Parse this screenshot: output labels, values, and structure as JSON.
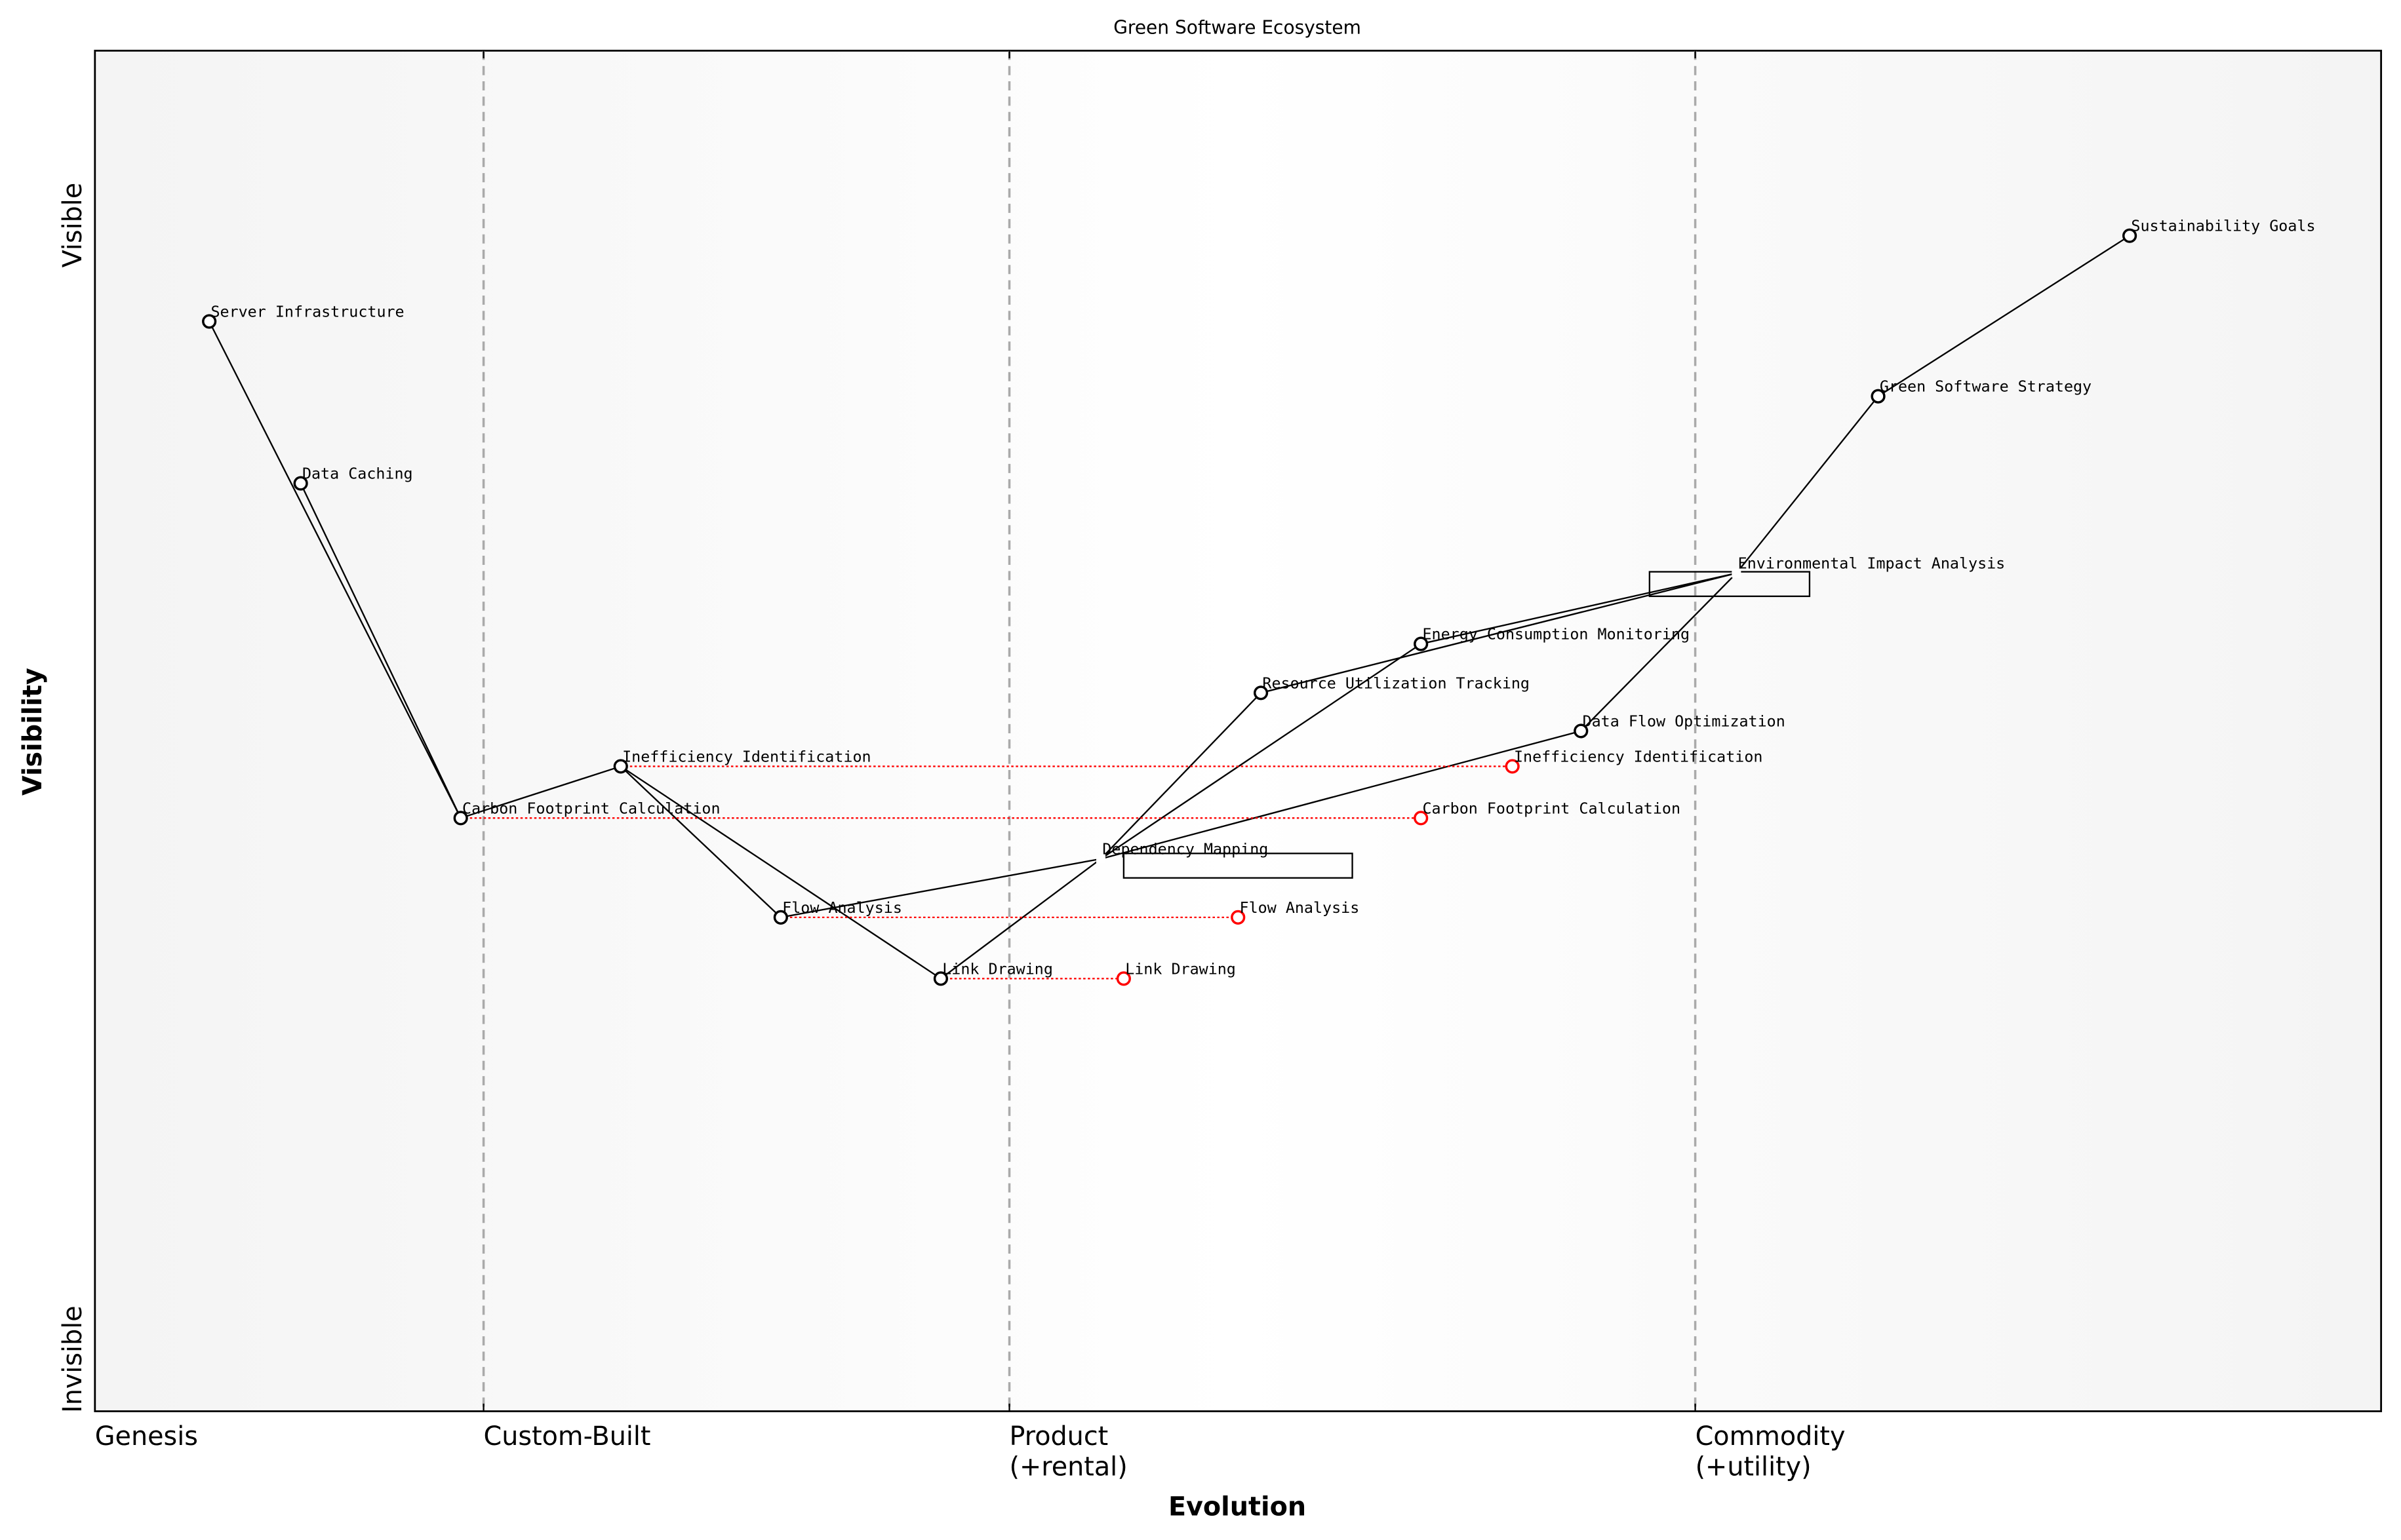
{
  "chart_data": {
    "type": "wardley-map",
    "title": "Green Software Ecosystem",
    "xlabel": "Evolution",
    "ylabel": "Visibility",
    "xlim": [
      0,
      1
    ],
    "ylim": [
      0,
      1
    ],
    "x_stage_labels": [
      "Genesis",
      "Custom-Built",
      "Product\n(+rental)",
      "Commodity\n(+utility)"
    ],
    "stage_boundaries": [
      0.17,
      0.4,
      0.7
    ],
    "y_labels": {
      "top": "Visible",
      "bottom": "Invisible"
    },
    "components": [
      {
        "name": "Sustainability Goals",
        "evolution": 0.89,
        "visibility": 0.864,
        "marker": true
      },
      {
        "name": "Green Software Strategy",
        "evolution": 0.78,
        "visibility": 0.746,
        "marker": true
      },
      {
        "name": "Environmental Impact Analysis",
        "evolution": 0.718,
        "visibility": 0.616,
        "marker": false
      },
      {
        "name": "Energy Consumption Monitoring",
        "evolution": 0.58,
        "visibility": 0.564,
        "marker": true
      },
      {
        "name": "Resource Utilization Tracking",
        "evolution": 0.51,
        "visibility": 0.528,
        "marker": true
      },
      {
        "name": "Data Flow Optimization",
        "evolution": 0.65,
        "visibility": 0.5,
        "marker": true
      },
      {
        "name": "Inefficiency Identification",
        "evolution": 0.23,
        "visibility": 0.474,
        "marker": true
      },
      {
        "name": "Carbon Footprint Calculation",
        "evolution": 0.16,
        "visibility": 0.436,
        "marker": true
      },
      {
        "name": "Dependency Mapping",
        "evolution": 0.44,
        "visibility": 0.406,
        "marker": false
      },
      {
        "name": "Flow Analysis",
        "evolution": 0.3,
        "visibility": 0.363,
        "marker": true
      },
      {
        "name": "Link Drawing",
        "evolution": 0.37,
        "visibility": 0.318,
        "marker": true
      },
      {
        "name": "Server Infrastructure",
        "evolution": 0.05,
        "visibility": 0.801,
        "marker": true
      },
      {
        "name": "Data Caching",
        "evolution": 0.09,
        "visibility": 0.682,
        "marker": true
      }
    ],
    "links": [
      [
        "Sustainability Goals",
        "Green Software Strategy"
      ],
      [
        "Green Software Strategy",
        "Environmental Impact Analysis"
      ],
      [
        "Environmental Impact Analysis",
        "Energy Consumption Monitoring"
      ],
      [
        "Environmental Impact Analysis",
        "Resource Utilization Tracking"
      ],
      [
        "Environmental Impact Analysis",
        "Data Flow Optimization"
      ],
      [
        "Dependency Mapping",
        "Resource Utilization Tracking"
      ],
      [
        "Dependency Mapping",
        "Energy Consumption Monitoring"
      ],
      [
        "Dependency Mapping",
        "Data Flow Optimization"
      ],
      [
        "Dependency Mapping",
        "Flow Analysis"
      ],
      [
        "Dependency Mapping",
        "Link Drawing"
      ],
      [
        "Server Infrastructure",
        "Carbon Footprint Calculation"
      ],
      [
        "Data Caching",
        "Carbon Footprint Calculation"
      ],
      [
        "Carbon Footprint Calculation",
        "Inefficiency Identification"
      ],
      [
        "Inefficiency Identification",
        "Flow Analysis"
      ],
      [
        "Inefficiency Identification",
        "Link Drawing"
      ]
    ],
    "evolve": [
      {
        "name": "Inefficiency Identification",
        "to": 0.62
      },
      {
        "name": "Carbon Footprint Calculation",
        "to": 0.58
      },
      {
        "name": "Flow Analysis",
        "to": 0.5
      },
      {
        "name": "Link Drawing",
        "to": 0.45
      }
    ],
    "boxes": [
      {
        "near": "Environmental Impact Analysis",
        "x0": 0.68,
        "x1": 0.75,
        "y0": 0.599,
        "y1": 0.617
      },
      {
        "near": "Dependency Mapping",
        "x0": 0.45,
        "x1": 0.55,
        "y0": 0.392,
        "y1": 0.41
      }
    ],
    "colors": {
      "evolve": "#ff0000",
      "stage_line": "#aaaaaa",
      "component": "#000000"
    }
  }
}
